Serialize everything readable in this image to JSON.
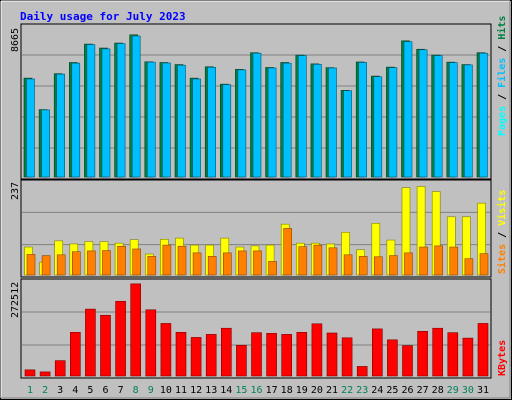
{
  "chart_data": [
    {
      "type": "bar",
      "title": "Daily usage for July 2023",
      "panel": "top",
      "y_max_label": "8665",
      "legend_right": [
        "Pages",
        "Files",
        "Hits"
      ],
      "categories": [
        "1",
        "2",
        "3",
        "4",
        "5",
        "6",
        "7",
        "8",
        "9",
        "10",
        "11",
        "12",
        "13",
        "14",
        "15",
        "16",
        "17",
        "18",
        "19",
        "20",
        "21",
        "22",
        "23",
        "24",
        "25",
        "26",
        "27",
        "28",
        "29",
        "30",
        "31"
      ],
      "series": [
        {
          "name": "Hits",
          "color": "#008040",
          "values": [
            5750,
            3920,
            6010,
            6660,
            7730,
            7500,
            7790,
            8270,
            6700,
            6660,
            6540,
            5750,
            6410,
            5400,
            6260,
            7230,
            6370,
            6660,
            7090,
            6580,
            6360,
            5040,
            6690,
            5870,
            6390,
            7920,
            7430,
            7090,
            6680,
            6540,
            7230
          ]
        },
        {
          "name": "Files",
          "color": "#00bfff",
          "values": [
            5700,
            3900,
            5980,
            6620,
            7700,
            7450,
            7760,
            8200,
            6680,
            6630,
            6500,
            5700,
            6380,
            5370,
            6230,
            7200,
            6340,
            6620,
            7060,
            6550,
            6340,
            5020,
            6660,
            5830,
            6360,
            7870,
            7400,
            7060,
            6650,
            6520,
            7200
          ]
        },
        {
          "name": "Pages",
          "color": "#00ffff",
          "values": [
            0,
            0,
            0,
            0,
            0,
            0,
            0,
            0,
            0,
            0,
            0,
            0,
            0,
            0,
            0,
            0,
            0,
            0,
            0,
            0,
            0,
            0,
            0,
            0,
            0,
            0,
            0,
            0,
            0,
            0,
            0
          ]
        }
      ],
      "weekend_days": [
        "1",
        "2",
        "8",
        "9",
        "15",
        "16",
        "22",
        "23",
        "29",
        "30"
      ]
    },
    {
      "type": "bar",
      "panel": "middle",
      "y_max_label": "237",
      "legend_right": [
        "Sites",
        "Visits"
      ],
      "series": [
        {
          "name": "Visits",
          "color": "#ffff00",
          "values": [
            72,
            33,
            88,
            80,
            86,
            86,
            82,
            91,
            54,
            92,
            95,
            77,
            77,
            95,
            72,
            75,
            77,
            131,
            82,
            82,
            80,
            110,
            65,
            133,
            90,
            225,
            228,
            215,
            150,
            150,
            185
          ]
        },
        {
          "name": "Sites",
          "color": "#ff8000",
          "values": [
            53,
            50,
            52,
            60,
            62,
            63,
            74,
            67,
            48,
            77,
            74,
            57,
            48,
            57,
            62,
            62,
            35,
            120,
            73,
            77,
            70,
            52,
            48,
            47,
            50,
            57,
            72,
            75,
            72,
            42,
            55
          ]
        }
      ],
      "ylim": [
        0,
        237
      ]
    },
    {
      "type": "bar",
      "panel": "bottom",
      "y_max_label": "272512",
      "legend_right": [
        "KBytes"
      ],
      "series": [
        {
          "name": "KBytes",
          "color": "#ff0000",
          "values": [
            18000,
            12000,
            45000,
            128000,
            196000,
            178000,
            219000,
            270000,
            194000,
            154000,
            128000,
            113000,
            122000,
            140000,
            90000,
            127000,
            125000,
            122000,
            128000,
            153000,
            126000,
            112000,
            28000,
            138000,
            106000,
            89000,
            131000,
            140000,
            127000,
            111000,
            154000
          ]
        }
      ],
      "ylim": [
        0,
        272512
      ]
    }
  ],
  "colors": {
    "background": "#c0c0c0",
    "title": "#0000ff",
    "weekend_label": "#00805c",
    "weekday_label": "#000000"
  }
}
